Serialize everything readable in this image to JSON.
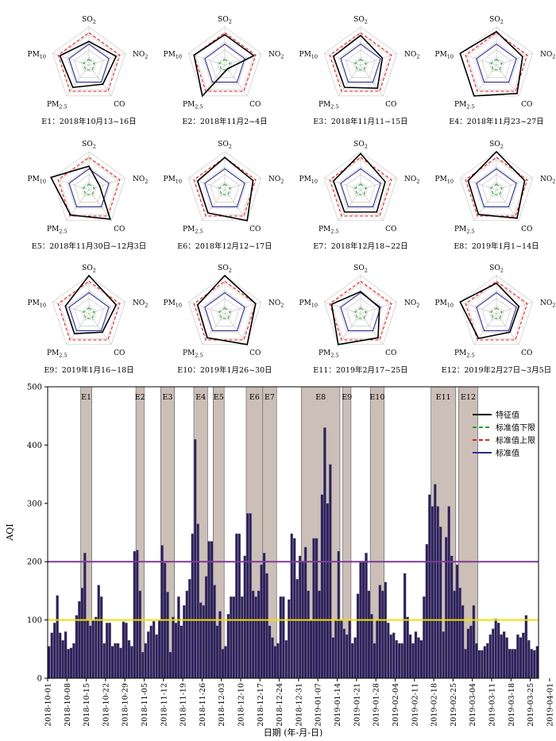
{
  "chart_data": [
    {
      "type": "radar",
      "axes": [
        "SO2",
        "NO2",
        "CO",
        "PM2.5",
        "PM10"
      ],
      "axis_labels": [
        {
          "main": "SO",
          "sub": "2"
        },
        {
          "main": "NO",
          "sub": "2"
        },
        {
          "main": "CO",
          "sub": ""
        },
        {
          "main": "PM",
          "sub": "2.5"
        },
        {
          "main": "PM",
          "sub": "10"
        }
      ],
      "reference_series": [
        {
          "name": "标准值下限",
          "values": [
            0.15,
            0.15,
            0.15,
            0.15,
            0.15
          ],
          "color": "#2ca02c",
          "dash": "dashed"
        },
        {
          "name": "标准值上限",
          "values": [
            0.85,
            0.85,
            0.85,
            0.85,
            0.85
          ],
          "color": "#e41a1c",
          "dash": "dashed"
        },
        {
          "name": "标准值",
          "values": [
            0.55,
            0.55,
            0.55,
            0.55,
            0.55
          ],
          "color": "#2b2b8c",
          "dash": "solid"
        }
      ],
      "panels": [
        {
          "caption": "E1：2018年10月13~16日",
          "values": [
            0.62,
            0.75,
            0.62,
            0.72,
            0.8
          ]
        },
        {
          "caption": "E2：2018年11月2~4日",
          "values": [
            0.8,
            0.8,
            0.12,
            1.0,
            0.85
          ]
        },
        {
          "caption": "E3：2018年11月11~15日",
          "values": [
            0.78,
            0.6,
            0.75,
            0.72,
            0.75
          ]
        },
        {
          "caption": "E4：2018年11月23~27日",
          "values": [
            0.88,
            0.72,
            0.92,
            1.0,
            1.0
          ]
        },
        {
          "caption": "E5：2018年11月30日~12月3日",
          "values": [
            0.62,
            0.3,
            0.95,
            0.82,
            1.05
          ]
        },
        {
          "caption": "E6：2018年12月12~17日",
          "values": [
            0.85,
            0.78,
            1.0,
            0.75,
            0.75
          ]
        },
        {
          "caption": "E7：2018年12月18~22日",
          "values": [
            0.95,
            0.68,
            0.72,
            0.72,
            0.75
          ]
        },
        {
          "caption": "E8：2019年1月1~14日",
          "values": [
            1.0,
            0.78,
            0.92,
            0.8,
            0.78
          ]
        },
        {
          "caption": "E9：2019年1月16~18日",
          "values": [
            1.0,
            0.75,
            0.6,
            0.65,
            0.65
          ]
        },
        {
          "caption": "E10：2019年1月26~30日",
          "values": [
            1.0,
            0.85,
            1.0,
            0.78,
            0.75
          ]
        },
        {
          "caption": "E11：2019年2月17~25日",
          "values": [
            0.58,
            0.52,
            0.78,
            1.0,
            0.8
          ]
        },
        {
          "caption": "E12：2019年2月27日~3月5日",
          "values": [
            0.8,
            0.62,
            0.6,
            0.8,
            1.0
          ]
        }
      ]
    },
    {
      "type": "bar",
      "ylabel": "AQI",
      "xlabel": "日期 (年-月-日)",
      "ylim": [
        0,
        500
      ],
      "yticks": [
        0,
        100,
        200,
        300,
        400,
        500
      ],
      "xticks": [
        "2018-10-01",
        "2018-10-08",
        "2018-10-15",
        "2018-10-22",
        "2018-10-29",
        "2018-11-05",
        "2018-11-12",
        "2018-11-19",
        "2018-11-26",
        "2018-12-03",
        "2018-12-10",
        "2018-12-17",
        "2018-12-24",
        "2018-12-31",
        "2019-01-07",
        "2019-01-14",
        "2019-01-21",
        "2019-01-28",
        "2019-02-04",
        "2019-02-11",
        "2019-02-18",
        "2019-02-25",
        "2019-03-04",
        "2019-03-11",
        "2019-03-18",
        "2019-03-25",
        "2019-04-01"
      ],
      "start_date": "2018-10-01",
      "values": [
        55,
        78,
        95,
        142,
        78,
        65,
        80,
        50,
        52,
        60,
        108,
        132,
        155,
        215,
        100,
        90,
        100,
        105,
        160,
        140,
        60,
        95,
        95,
        55,
        60,
        60,
        52,
        97,
        95,
        65,
        55,
        218,
        220,
        150,
        45,
        60,
        80,
        90,
        98,
        75,
        100,
        228,
        198,
        148,
        45,
        105,
        95,
        140,
        90,
        125,
        150,
        170,
        248,
        410,
        265,
        130,
        125,
        175,
        235,
        235,
        160,
        90,
        115,
        50,
        55,
        110,
        140,
        140,
        248,
        248,
        140,
        210,
        283,
        283,
        150,
        140,
        150,
        195,
        215,
        180,
        90,
        70,
        55,
        60,
        140,
        140,
        65,
        135,
        248,
        240,
        170,
        210,
        200,
        225,
        150,
        100,
        240,
        240,
        150,
        315,
        430,
        300,
        367,
        70,
        100,
        218,
        100,
        85,
        75,
        100,
        60,
        70,
        145,
        200,
        200,
        215,
        150,
        110,
        60,
        100,
        160,
        150,
        165,
        95,
        75,
        78,
        65,
        60,
        60,
        180,
        105,
        75,
        60,
        80,
        70,
        65,
        140,
        230,
        315,
        295,
        333,
        295,
        260,
        80,
        242,
        295,
        210,
        150,
        195,
        155,
        125,
        50,
        85,
        90,
        125,
        60,
        48,
        48,
        55,
        60,
        75,
        85,
        102,
        95,
        75,
        80,
        70,
        50,
        50,
        50,
        75,
        70,
        78,
        108,
        65,
        50,
        48,
        55
      ],
      "episodes": [
        {
          "label": "E1",
          "start": 12,
          "end": 15
        },
        {
          "label": "E2",
          "start": 32,
          "end": 34
        },
        {
          "label": "E3",
          "start": 41,
          "end": 45
        },
        {
          "label": "E4",
          "start": 53,
          "end": 57
        },
        {
          "label": "E5",
          "start": 60,
          "end": 63
        },
        {
          "label": "E6",
          "start": 72,
          "end": 77
        },
        {
          "label": "E7",
          "start": 78,
          "end": 82
        },
        {
          "label": "E8",
          "start": 92,
          "end": 105
        },
        {
          "label": "E9",
          "start": 107,
          "end": 109
        },
        {
          "label": "E10",
          "start": 117,
          "end": 121
        },
        {
          "label": "E11",
          "start": 139,
          "end": 147
        },
        {
          "label": "E12",
          "start": 149,
          "end": 155
        }
      ],
      "reference_lines": [
        {
          "value": 100,
          "color": "#f0e000"
        },
        {
          "value": 200,
          "color": "#7d3c98"
        }
      ],
      "legend": {
        "position": "top-right",
        "items": [
          {
            "label": "特征值",
            "color": "#000000",
            "dash": "solid"
          },
          {
            "label": "标准值下限",
            "color": "#2ca02c",
            "dash": "dashed"
          },
          {
            "label": "标准值上限",
            "color": "#e41a1c",
            "dash": "dashed"
          },
          {
            "label": "标准值",
            "color": "#2b2b8c",
            "dash": "solid"
          }
        ]
      },
      "colors": {
        "bar_fill": "#2c1f5e",
        "bar_edge": "#888888",
        "episode_fill": "#cbbfb8"
      }
    }
  ]
}
